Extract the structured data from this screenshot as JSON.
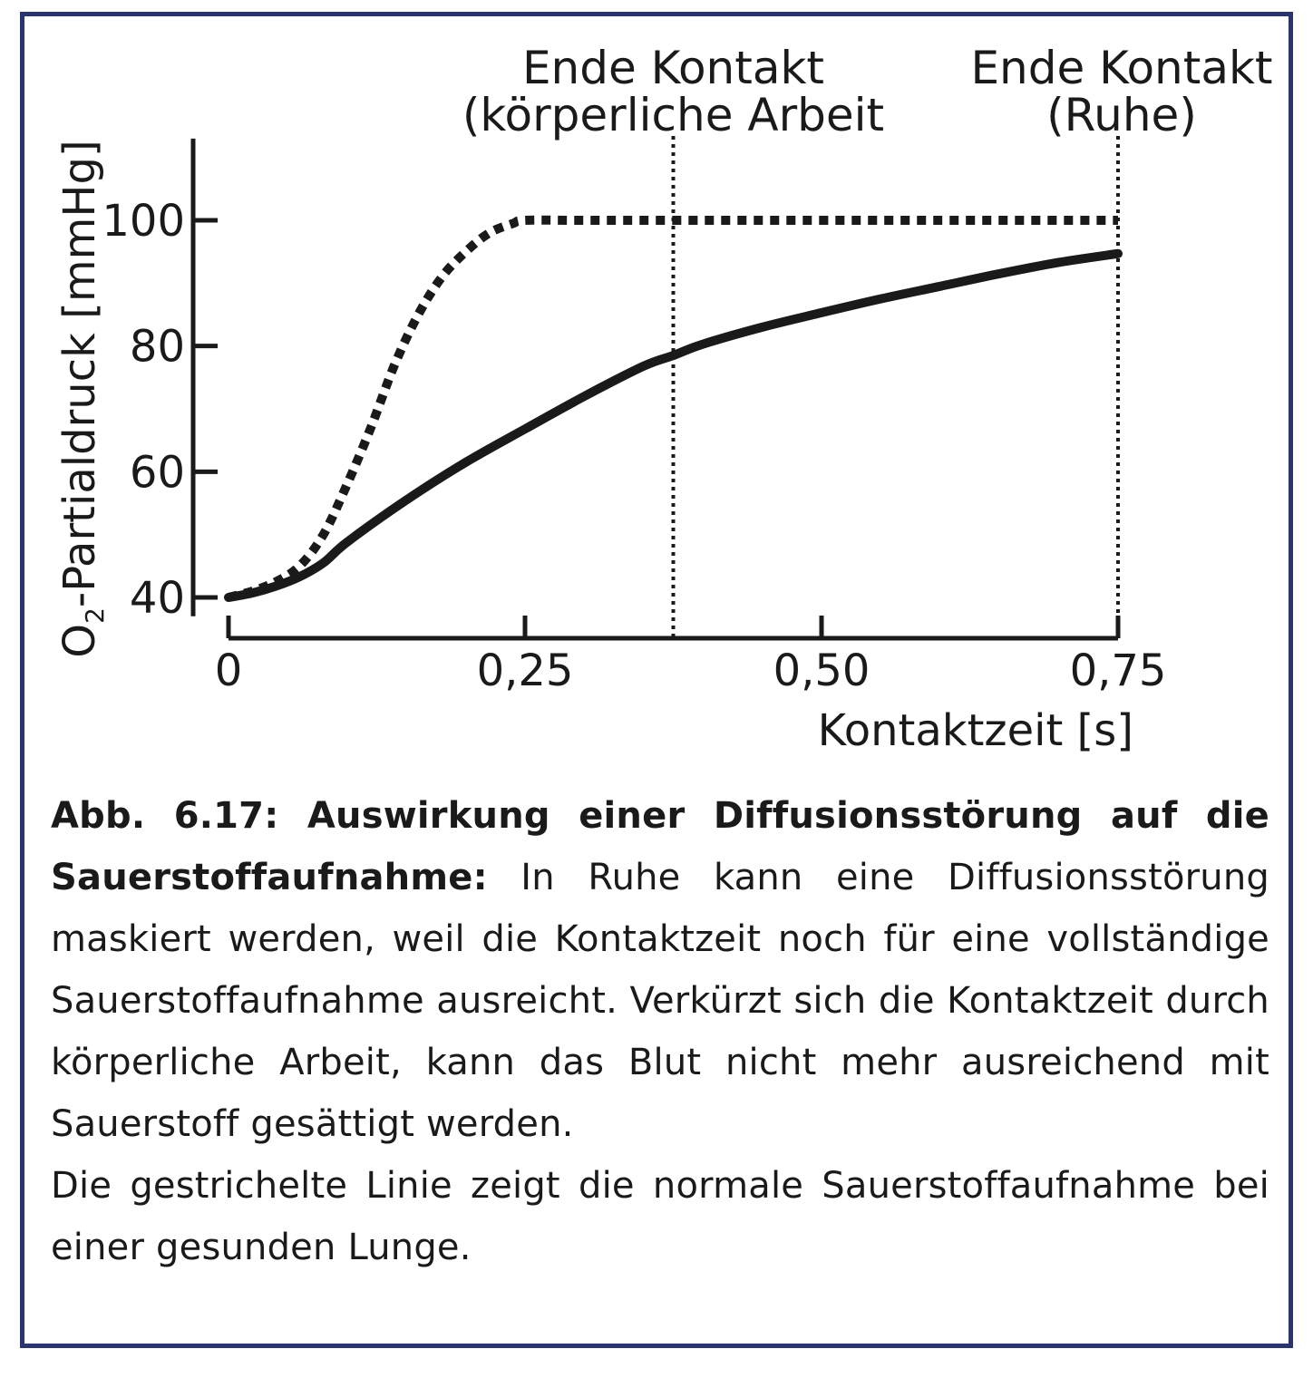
{
  "chart_data": {
    "type": "line",
    "xlabel": "Kontaktzeit [s]",
    "ylabel_prefix": "O",
    "ylabel_sub": "2",
    "ylabel_suffix": "-Partialdruck [mmHg]",
    "x_ticks": [
      0,
      0.25,
      0.5,
      0.75
    ],
    "x_tick_labels": [
      "0",
      "0,25",
      "0,50",
      "0,75"
    ],
    "y_ticks": [
      40,
      60,
      80,
      100
    ],
    "y_tick_labels": [
      "40",
      "60",
      "80",
      "100"
    ],
    "xlim": [
      0,
      0.75
    ],
    "ylim": [
      37,
      113
    ],
    "grid": false,
    "series": [
      {
        "style": "dotted",
        "x": [
          0,
          0.02,
          0.04,
          0.06,
          0.08,
          0.1,
          0.12,
          0.14,
          0.16,
          0.18,
          0.2,
          0.22,
          0.24,
          0.25,
          0.3,
          0.4,
          0.5,
          0.6,
          0.75
        ],
        "y": [
          40,
          41,
          42.5,
          45,
          50,
          58,
          67,
          77,
          85,
          91,
          95,
          98,
          99.5,
          100,
          100,
          100,
          100,
          100,
          100
        ]
      },
      {
        "style": "solid",
        "x": [
          0,
          0.02,
          0.04,
          0.06,
          0.08,
          0.1,
          0.15,
          0.2,
          0.25,
          0.3,
          0.35,
          0.375,
          0.4,
          0.45,
          0.5,
          0.55,
          0.6,
          0.65,
          0.7,
          0.75
        ],
        "y": [
          40,
          40.7,
          41.8,
          43.3,
          45.5,
          48.8,
          55.5,
          61.5,
          66.8,
          72,
          76.8,
          78.5,
          80.3,
          83,
          85.3,
          87.5,
          89.5,
          91.5,
          93.3,
          94.7
        ]
      }
    ],
    "markers": [
      {
        "x": 0.375,
        "line1": "Ende Kontakt",
        "line2": "(körperliche Arbeit"
      },
      {
        "x": 0.75,
        "line1": "Ende Kontakt",
        "line2": "(Ruhe)"
      }
    ]
  },
  "caption": {
    "bold": "Abb. 6.17: Auswirkung einer Diffusionsstörung auf die Sauerstoffaufnahme:",
    "text": " In Ruhe kann eine Diffusionsstörung maskiert werden, weil die Kontaktzeit noch für eine vollständige Sauerstoffaufnahme ausreicht. Verkürzt sich die Kontaktzeit durch körperliche Arbeit, kann das Blut nicht mehr ausreichend mit Sauerstoff gesättigt werden.",
    "text2": "Die gestrichelte Linie zeigt die normale Sauerstoffaufnahme bei einer gesunden Lunge."
  },
  "colors": {
    "frame": "#2b3472",
    "ink": "#1a1a1a"
  }
}
